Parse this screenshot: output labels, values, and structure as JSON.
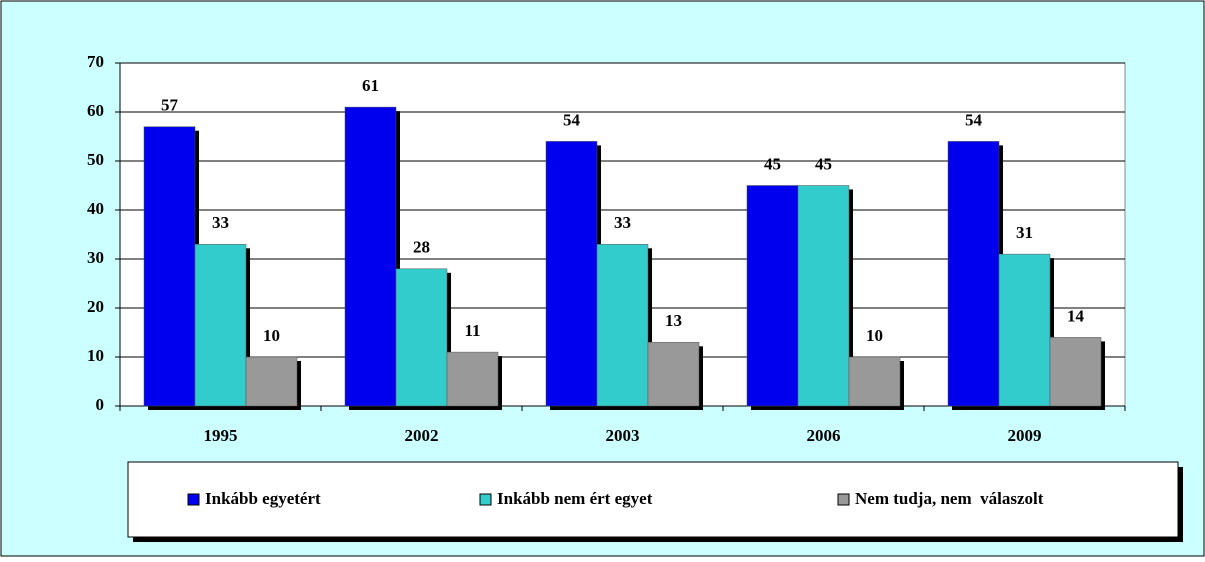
{
  "chart_data": {
    "type": "bar",
    "categories": [
      "1995",
      "2002",
      "2003",
      "2006",
      "2009"
    ],
    "series": [
      {
        "name": "Inkább egyetért",
        "color": "#0000ee",
        "values": [
          57,
          61,
          54,
          45,
          54
        ]
      },
      {
        "name": "Inkább nem ért egyet",
        "color": "#33cccc",
        "values": [
          33,
          28,
          33,
          45,
          31
        ]
      },
      {
        "name": "Nem tudja, nem  válaszolt",
        "color": "#999999",
        "values": [
          10,
          11,
          13,
          10,
          14
        ]
      }
    ],
    "ylim": [
      0,
      70
    ],
    "yticks": [
      0,
      10,
      20,
      30,
      40,
      50,
      60,
      70
    ],
    "grid": true,
    "legend": "bottom"
  }
}
